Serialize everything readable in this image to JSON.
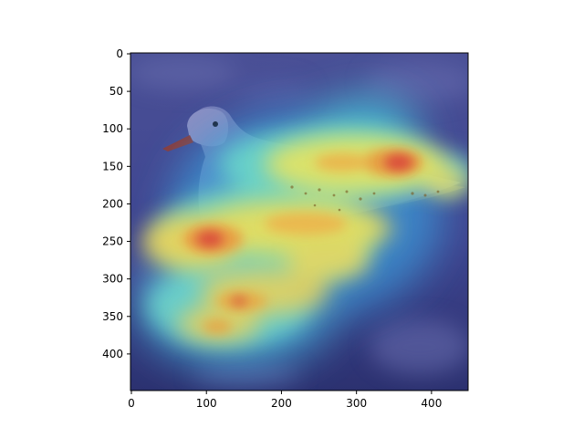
{
  "figure": {
    "x_axis": {
      "range": [
        0,
        450
      ],
      "ticks": [
        0,
        100,
        200,
        300,
        400
      ]
    },
    "y_axis": {
      "range": [
        0,
        450
      ],
      "ticks": [
        0,
        50,
        100,
        150,
        200,
        250,
        300,
        350,
        400
      ],
      "inverted": true
    },
    "image": {
      "subject": "seagull standing on wet sand",
      "overlay": "attention heatmap, jet colormap, semi-transparent"
    },
    "colors": {
      "background_tint": "#3a3f8c",
      "cold": "#2438b8",
      "cyan": "#55d8e8",
      "yellow": "#f2e05a",
      "red": "#d9403a"
    }
  }
}
